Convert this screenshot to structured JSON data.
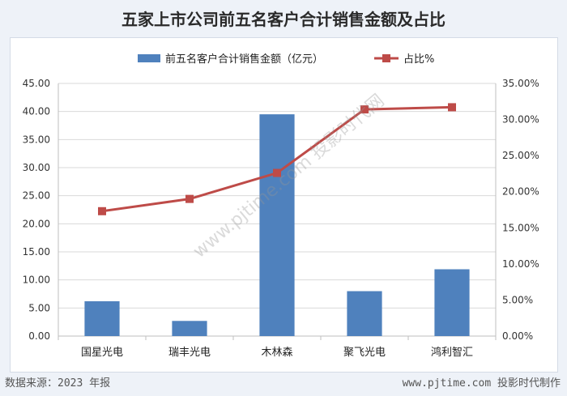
{
  "title": "五家上市公司前五名客户合计销售金额及占比",
  "footer": {
    "source": "数据来源：2023 年报",
    "credit": "www.pjtime.com 投影时代制作"
  },
  "watermark": "www.pjtime.com 投影时代网",
  "colors": {
    "bar": "#4f81bd",
    "line": "#be4b48",
    "grid": "#d9d9d9"
  },
  "chart_data": {
    "type": "bar",
    "categories": [
      "国星光电",
      "瑞丰光电",
      "木林森",
      "聚飞光电",
      "鸿利智汇"
    ],
    "series": [
      {
        "name": "前五名客户合计销售金额（亿元）",
        "type": "bar",
        "axis": "left",
        "values": [
          6.2,
          2.7,
          39.5,
          8.0,
          11.9
        ]
      },
      {
        "name": "占比%",
        "type": "line",
        "axis": "right",
        "values": [
          17.3,
          19.0,
          22.6,
          31.4,
          31.7
        ]
      }
    ],
    "y_left": {
      "min": 0,
      "max": 45,
      "step": 5,
      "tick_labels": [
        "0.00",
        "5.00",
        "10.00",
        "15.00",
        "20.00",
        "25.00",
        "30.00",
        "35.00",
        "40.00",
        "45.00"
      ]
    },
    "y_right": {
      "min": 0,
      "max": 35,
      "step": 5,
      "tick_labels": [
        "0.00%",
        "5.00%",
        "10.00%",
        "15.00%",
        "20.00%",
        "25.00%",
        "30.00%",
        "35.00%"
      ]
    },
    "grid": true,
    "legend": "top"
  }
}
